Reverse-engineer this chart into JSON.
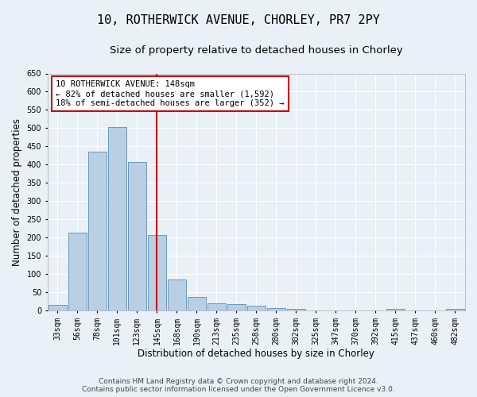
{
  "title1": "10, ROTHERWICK AVENUE, CHORLEY, PR7 2PY",
  "title2": "Size of property relative to detached houses in Chorley",
  "xlabel": "Distribution of detached houses by size in Chorley",
  "ylabel": "Number of detached properties",
  "categories": [
    "33sqm",
    "56sqm",
    "78sqm",
    "101sqm",
    "123sqm",
    "145sqm",
    "168sqm",
    "190sqm",
    "213sqm",
    "235sqm",
    "258sqm",
    "280sqm",
    "302sqm",
    "325sqm",
    "347sqm",
    "370sqm",
    "392sqm",
    "415sqm",
    "437sqm",
    "460sqm",
    "482sqm"
  ],
  "values": [
    15,
    213,
    435,
    503,
    407,
    208,
    84,
    38,
    20,
    17,
    13,
    7,
    4,
    1,
    1,
    0,
    0,
    4,
    0,
    0,
    5
  ],
  "bar_color": "#b8cfe4",
  "bar_edge_color": "#5b8db8",
  "annotation_text": "10 ROTHERWICK AVENUE: 148sqm\n← 82% of detached houses are smaller (1,592)\n18% of semi-detached houses are larger (352) →",
  "annotation_box_color": "#ffffff",
  "annotation_box_edge_color": "#cc0000",
  "vline_color": "#cc0000",
  "ylim": [
    0,
    650
  ],
  "yticks": [
    0,
    50,
    100,
    150,
    200,
    250,
    300,
    350,
    400,
    450,
    500,
    550,
    600,
    650
  ],
  "footer1": "Contains HM Land Registry data © Crown copyright and database right 2024.",
  "footer2": "Contains public sector information licensed under the Open Government Licence v3.0.",
  "bg_color": "#eaf0f8",
  "plot_bg_color": "#eaf0f8",
  "title1_fontsize": 11,
  "title2_fontsize": 9.5,
  "tick_fontsize": 7,
  "label_fontsize": 8.5,
  "footer_fontsize": 6.5,
  "annot_fontsize": 7.5
}
